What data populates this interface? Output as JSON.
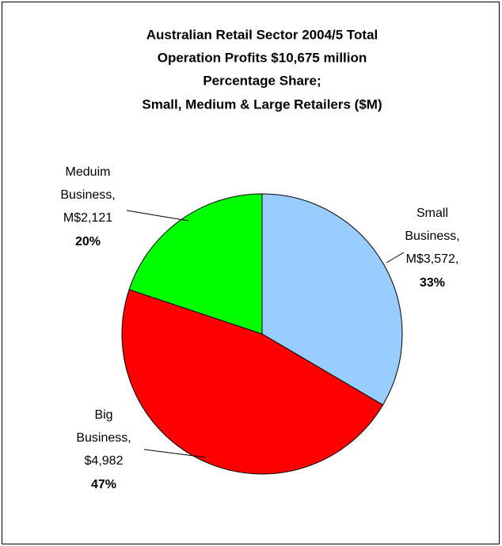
{
  "chart_data": {
    "type": "pie",
    "title": [
      "Australian Retail Sector 2004/5 Total",
      "Operation Profits $10,675 million",
      "Percentage Share;",
      "Small, Medium & Large Retailers ($M)"
    ],
    "categories": [
      "Small Business,",
      "Big Business,",
      "Meduim Business,"
    ],
    "values": [
      3572,
      4982,
      2121
    ],
    "value_labels": [
      "M$3,572,",
      "$4,982",
      "M$2,121"
    ],
    "percents": [
      33,
      47,
      20
    ],
    "percent_labels": [
      "33%",
      "47%",
      "20%"
    ],
    "colors": [
      "#99ccff",
      "#ff0000",
      "#00ff00"
    ]
  }
}
